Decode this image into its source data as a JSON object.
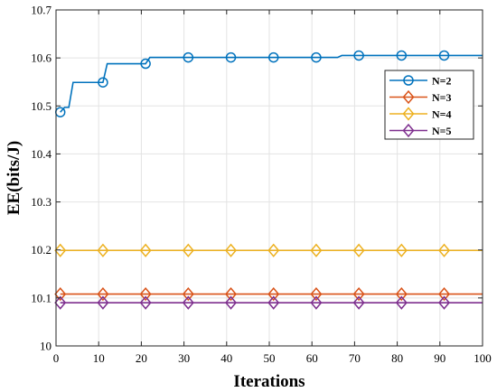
{
  "chart_data": {
    "type": "line",
    "title": "",
    "xlabel": "Iterations",
    "ylabel": "EE(bits/J)",
    "xlim": [
      0,
      100
    ],
    "ylim": [
      10,
      10.7
    ],
    "xticks": [
      0,
      10,
      20,
      30,
      40,
      50,
      60,
      70,
      80,
      90,
      100
    ],
    "yticks": [
      10,
      10.1,
      10.2,
      10.3,
      10.4,
      10.5,
      10.6,
      10.7
    ],
    "xtick_labels": [
      "0",
      "10",
      "20",
      "30",
      "40",
      "50",
      "60",
      "70",
      "80",
      "90",
      "100"
    ],
    "ytick_labels": [
      "10",
      "10.1",
      "10.2",
      "10.3",
      "10.4",
      "10.5",
      "10.6",
      "10.7"
    ],
    "grid": true,
    "legend_position": "top-right",
    "marker_x": [
      1,
      11,
      21,
      31,
      41,
      51,
      61,
      71,
      81,
      91
    ],
    "series": [
      {
        "name": "N=2",
        "color": "#0072BD",
        "marker": "circle",
        "step_points": [
          [
            1,
            10.487
          ],
          [
            2,
            10.497
          ],
          [
            3,
            10.497
          ],
          [
            4,
            10.549
          ],
          [
            11,
            10.549
          ],
          [
            12,
            10.588
          ],
          [
            21,
            10.588
          ],
          [
            22,
            10.601
          ],
          [
            66,
            10.601
          ],
          [
            67,
            10.605
          ],
          [
            100,
            10.605
          ]
        ],
        "marker_values": [
          10.487,
          10.549,
          10.588,
          10.601,
          10.601,
          10.601,
          10.601,
          10.605,
          10.605,
          10.605
        ]
      },
      {
        "name": "N=3",
        "color": "#D95319",
        "marker": "diamond",
        "step_points": [
          [
            1,
            10.108
          ],
          [
            100,
            10.108
          ]
        ],
        "marker_values": [
          10.108,
          10.108,
          10.108,
          10.108,
          10.108,
          10.108,
          10.108,
          10.108,
          10.108,
          10.108
        ]
      },
      {
        "name": "N=4",
        "color": "#EDB120",
        "marker": "diamond",
        "step_points": [
          [
            1,
            10.199
          ],
          [
            100,
            10.199
          ]
        ],
        "marker_values": [
          10.199,
          10.199,
          10.199,
          10.199,
          10.199,
          10.199,
          10.199,
          10.199,
          10.199,
          10.199
        ]
      },
      {
        "name": "N=5",
        "color": "#7E2F8E",
        "marker": "diamond",
        "step_points": [
          [
            1,
            10.09
          ],
          [
            100,
            10.09
          ]
        ],
        "marker_values": [
          10.09,
          10.09,
          10.09,
          10.09,
          10.09,
          10.09,
          10.09,
          10.09,
          10.09,
          10.09
        ]
      }
    ]
  }
}
